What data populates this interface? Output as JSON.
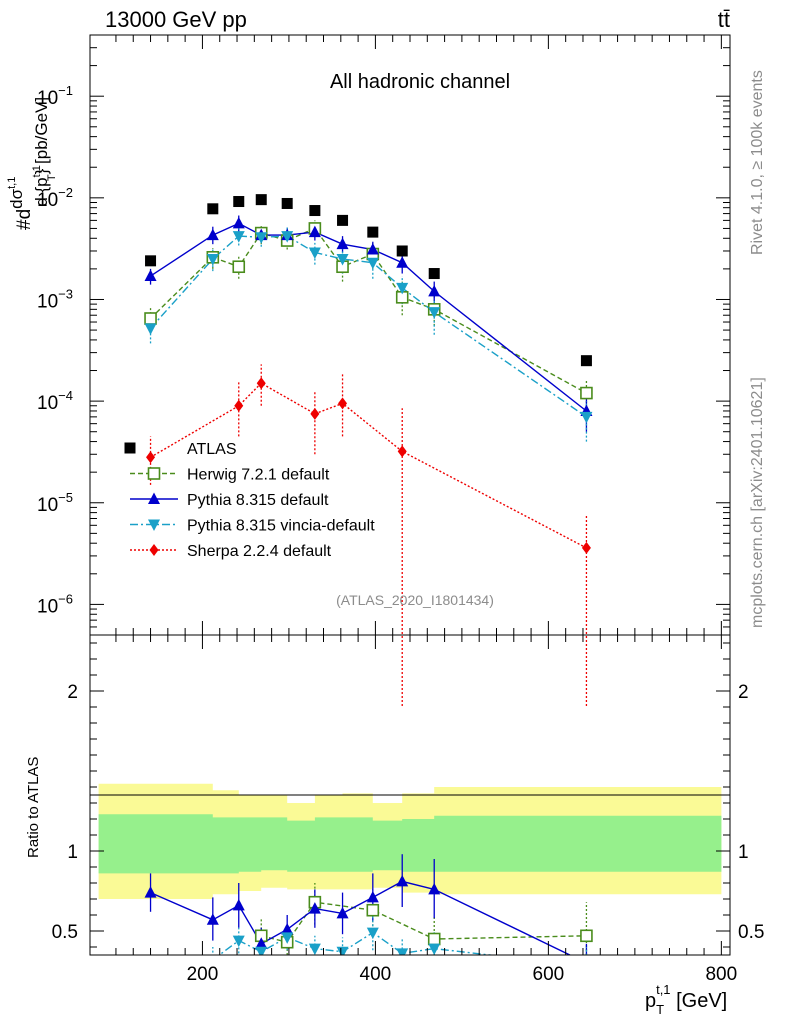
{
  "header": {
    "energy_label": "13000 GeV pp",
    "process_label": "tt̄"
  },
  "right_side": {
    "rivet_label": "Rivet 4.1.0, ≥ 100k events",
    "source_label": "mcplots.cern.ch [arXiv:2401.10621]"
  },
  "chart_data": [
    {
      "type": "scatter",
      "panel": "main",
      "title": "All hadronic channel",
      "ylabel_parts": [
        "#d",
        "dσ",
        "t,1",
        "d {p",
        "t,1",
        "T",
        "} [pb/GeV]"
      ],
      "xlim": [
        70,
        810
      ],
      "ylim": [
        5e-07,
        0.4
      ],
      "yscale": "log",
      "yticks": [
        {
          "value": 0.1,
          "label": "10",
          "exp": "−1"
        },
        {
          "value": 0.01,
          "label": "10",
          "exp": "−2"
        },
        {
          "value": 0.001,
          "label": "10",
          "exp": "−3"
        },
        {
          "value": 0.0001,
          "label": "10",
          "exp": "−4"
        },
        {
          "value": 1e-05,
          "label": "10",
          "exp": "−5"
        },
        {
          "value": 1e-06,
          "label": "10",
          "exp": "−6"
        }
      ],
      "watermark": "(ATLAS_2020_I1801434)",
      "x": [
        140,
        212,
        242,
        268,
        298,
        330,
        362,
        397,
        431,
        468,
        644
      ],
      "series": [
        {
          "name": "ATLAS",
          "color": "#000000",
          "marker": "square",
          "values": [
            0.0024,
            0.0078,
            0.0092,
            0.0096,
            0.0088,
            0.0075,
            0.006,
            0.0046,
            0.003,
            0.0018,
            0.00025
          ]
        },
        {
          "name": "Herwig 7.2.1 default",
          "color": "#4a8c1c",
          "marker": "open-square",
          "dash": "5,3",
          "values": [
            0.00065,
            0.0026,
            0.0021,
            0.0045,
            0.0038,
            0.005,
            0.0021,
            0.0028,
            0.00105,
            0.0008,
            0.00012
          ],
          "err_lo": [
            0.0005,
            0.002,
            0.0016,
            0.0035,
            0.0031,
            0.0041,
            0.0015,
            0.002,
            0.0007,
            0.00055,
            8e-05
          ],
          "err_hi": [
            0.00085,
            0.0032,
            0.0027,
            0.0055,
            0.0046,
            0.006,
            0.0028,
            0.0037,
            0.0015,
            0.0011,
            0.00016
          ]
        },
        {
          "name": "Pythia 8.315 default",
          "color": "#0000cc",
          "marker": "triangle-up",
          "values": [
            0.0017,
            0.0043,
            0.0056,
            0.0043,
            0.0043,
            0.0046,
            0.0035,
            0.0031,
            0.0023,
            0.0012,
            8e-05
          ],
          "err_lo": [
            0.0014,
            0.0035,
            0.0046,
            0.0036,
            0.0036,
            0.0038,
            0.0029,
            0.0025,
            0.0018,
            0.0009,
            5e-05
          ],
          "err_hi": [
            0.002,
            0.0052,
            0.0067,
            0.0051,
            0.0051,
            0.0055,
            0.0042,
            0.0037,
            0.0028,
            0.0015,
            0.00011
          ]
        },
        {
          "name": "Pythia 8.315 vincia-default",
          "color": "#1aa0c8",
          "marker": "triangle-down",
          "dash": "8,3,2,3",
          "values": [
            0.00052,
            0.0025,
            0.0042,
            0.0041,
            0.0042,
            0.0029,
            0.0025,
            0.0023,
            0.0013,
            0.00075,
            7e-05
          ],
          "err_lo": [
            0.00037,
            0.0019,
            0.0034,
            0.0033,
            0.0034,
            0.0022,
            0.0018,
            0.0016,
            0.0009,
            0.00045,
            4e-05
          ],
          "err_hi": [
            0.00068,
            0.0031,
            0.0051,
            0.0049,
            0.0051,
            0.0036,
            0.0032,
            0.003,
            0.0017,
            0.001,
            0.0001
          ]
        },
        {
          "name": "Sherpa 2.2.4 default",
          "color": "#ee0000",
          "marker": "diamond",
          "dash": "2,2",
          "values": [
            2.8e-05,
            null,
            9e-05,
            0.00015,
            null,
            7.5e-05,
            9.5e-05,
            null,
            3.2e-05,
            null,
            3.6e-06
          ],
          "err_lo": [
            1.5e-05,
            null,
            4.5e-05,
            9e-05,
            null,
            3e-05,
            4.5e-05,
            null,
            1e-07,
            null,
            1e-07
          ],
          "err_hi": [
            4.5e-05,
            null,
            0.00016,
            0.00023,
            null,
            0.000125,
            0.00019,
            null,
            8.5e-05,
            null,
            7.5e-06
          ]
        }
      ]
    },
    {
      "type": "line",
      "panel": "ratio",
      "ylabel": "Ratio to ATLAS",
      "xlabel_parts": [
        "p",
        "T",
        "t,1",
        " [GeV]"
      ],
      "xlim": [
        70,
        810
      ],
      "ylim": [
        0.35,
        2.35
      ],
      "xticks": [
        200,
        400,
        600,
        800
      ],
      "xtick_labels": [
        "200",
        "400",
        "600",
        "800"
      ],
      "yticks": [
        0.5,
        1,
        2
      ],
      "ytick_labels": [
        "0.5",
        "1",
        "2"
      ],
      "band_edges": [
        80,
        175,
        212,
        242,
        268,
        298,
        330,
        362,
        397,
        431,
        468,
        505,
        800
      ],
      "band_green": [
        [
          0.86,
          1.23
        ],
        [
          0.86,
          1.23
        ],
        [
          0.86,
          1.21
        ],
        [
          0.87,
          1.21
        ],
        [
          0.88,
          1.21
        ],
        [
          0.87,
          1.19
        ],
        [
          0.87,
          1.21
        ],
        [
          0.87,
          1.21
        ],
        [
          0.88,
          1.19
        ],
        [
          0.87,
          1.2
        ],
        [
          0.87,
          1.22
        ],
        [
          0.87,
          1.22
        ]
      ],
      "band_yellow": [
        [
          0.7,
          1.42
        ],
        [
          0.7,
          1.42
        ],
        [
          0.73,
          1.38
        ],
        [
          0.75,
          1.35
        ],
        [
          0.77,
          1.35
        ],
        [
          0.76,
          1.3
        ],
        [
          0.76,
          1.35
        ],
        [
          0.76,
          1.36
        ],
        [
          0.77,
          1.3
        ],
        [
          0.74,
          1.36
        ],
        [
          0.73,
          1.4
        ],
        [
          0.73,
          1.4
        ]
      ],
      "x": [
        140,
        212,
        242,
        268,
        298,
        330,
        362,
        397,
        431,
        468,
        644
      ],
      "series": [
        {
          "name": "Herwig 7.2.1 default",
          "color": "#4a8c1c",
          "marker": "open-square",
          "dash": "5,3",
          "values": [
            null,
            null,
            null,
            0.47,
            0.43,
            0.68,
            null,
            0.63,
            null,
            0.45,
            0.47
          ],
          "err_lo": [
            null,
            null,
            null,
            0.36,
            0.35,
            0.54,
            null,
            0.48,
            null,
            0.3,
            0.3
          ],
          "err_hi": [
            null,
            null,
            null,
            0.58,
            0.51,
            0.8,
            null,
            0.76,
            null,
            0.6,
            0.68
          ]
        },
        {
          "name": "Pythia 8.315 default",
          "color": "#0000cc",
          "marker": "triangle-up",
          "values": [
            0.74,
            0.57,
            0.66,
            0.42,
            0.51,
            0.64,
            0.61,
            0.71,
            0.81,
            0.76,
            0.3
          ],
          "err_lo": [
            0.62,
            0.44,
            0.52,
            0.32,
            0.42,
            0.52,
            0.48,
            0.56,
            0.65,
            0.58,
            0.2
          ],
          "err_hi": [
            0.86,
            0.71,
            0.8,
            0.52,
            0.6,
            0.76,
            0.74,
            0.86,
            0.98,
            0.95,
            0.42
          ]
        },
        {
          "name": "Pythia 8.315 vincia-default",
          "color": "#1aa0c8",
          "marker": "triangle-down",
          "dash": "8,3,2,3",
          "values": [
            0.22,
            0.32,
            0.44,
            0.37,
            0.46,
            0.39,
            0.37,
            0.49,
            0.36,
            0.39,
            0.28
          ],
          "err_lo": [
            0.12,
            0.24,
            0.36,
            0.28,
            0.38,
            0.31,
            0.28,
            0.38,
            0.26,
            0.28,
            0.17
          ],
          "err_hi": [
            0.33,
            0.4,
            0.52,
            0.46,
            0.54,
            0.47,
            0.46,
            0.6,
            0.46,
            0.5,
            0.4
          ]
        }
      ]
    }
  ]
}
